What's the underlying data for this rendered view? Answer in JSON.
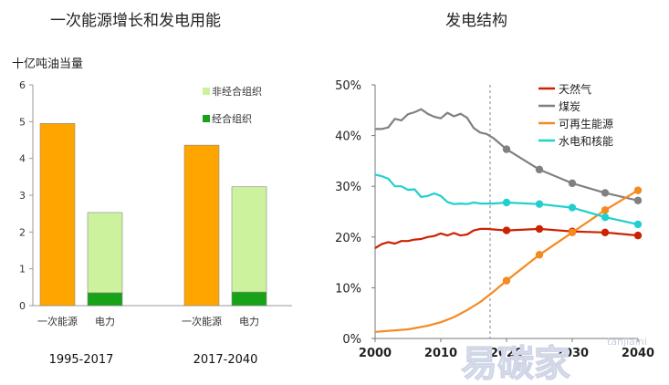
{
  "chart_data": [
    {
      "type": "bar",
      "title": "一次能源增长和发电用能",
      "ylabel": "十亿吨油当量",
      "ylim": [
        0,
        6
      ],
      "yticks": [
        "0",
        "1",
        "2",
        "3",
        "4",
        "5",
        "6"
      ],
      "groups": [
        {
          "label": "1995-2017",
          "bars": [
            {
              "label": "一次能源",
              "segments": [
                {
                  "series": "total",
                  "value": 4.95
                }
              ]
            },
            {
              "label": "电力",
              "segments": [
                {
                  "series": "经合组织",
                  "value": 0.35
                },
                {
                  "series": "非经合组织",
                  "value": 2.18
                }
              ]
            }
          ]
        },
        {
          "label": "2017-2040",
          "bars": [
            {
              "label": "一次能源",
              "segments": [
                {
                  "series": "total",
                  "value": 4.36
                }
              ]
            },
            {
              "label": "电力",
              "segments": [
                {
                  "series": "经合组织",
                  "value": 0.37
                },
                {
                  "series": "非经合组织",
                  "value": 2.86
                }
              ]
            }
          ]
        }
      ],
      "legend": [
        {
          "name": "非经合组织",
          "color": "#ccf29e"
        },
        {
          "name": "经合组织",
          "color": "#18a218"
        }
      ],
      "colors": {
        "total": "#ffa500",
        "非经合组织": "#ccf29e",
        "经合组织": "#18a218"
      }
    },
    {
      "type": "line",
      "title": "发电结构",
      "ylim": [
        0,
        50
      ],
      "yticks": [
        "0%",
        "10%",
        "20%",
        "30%",
        "40%",
        "50%"
      ],
      "xlim": [
        2000,
        2040
      ],
      "xticks": [
        "2000",
        "2010",
        "2020",
        "2030",
        "2040"
      ],
      "divider_x": 2017.5,
      "series": [
        {
          "name": "天然气",
          "color": "#cc2200",
          "x": [
            2000,
            2001,
            2002,
            2003,
            2004,
            2005,
            2006,
            2007,
            2008,
            2009,
            2010,
            2011,
            2012,
            2013,
            2014,
            2015,
            2016,
            2017,
            2018,
            2020,
            2025,
            2030,
            2035,
            2040
          ],
          "y": [
            17.8,
            18.6,
            19.0,
            18.7,
            19.2,
            19.2,
            19.5,
            19.6,
            20.0,
            20.2,
            20.7,
            20.3,
            20.8,
            20.3,
            20.5,
            21.3,
            21.6,
            21.6,
            21.5,
            21.3,
            21.6,
            21.1,
            20.9,
            20.3
          ],
          "markers_x": [
            2020,
            2025,
            2030,
            2035,
            2040
          ]
        },
        {
          "name": "煤炭",
          "color": "#808080",
          "x": [
            2000,
            2001,
            2002,
            2003,
            2004,
            2005,
            2006,
            2007,
            2008,
            2009,
            2010,
            2011,
            2012,
            2013,
            2014,
            2015,
            2016,
            2017,
            2018,
            2020,
            2025,
            2030,
            2035,
            2040
          ],
          "y": [
            41.3,
            41.3,
            41.6,
            43.3,
            43.0,
            44.2,
            44.6,
            45.2,
            44.3,
            43.7,
            43.4,
            44.5,
            43.8,
            44.3,
            43.5,
            41.5,
            40.6,
            40.3,
            39.5,
            37.3,
            33.3,
            30.6,
            28.7,
            27.2
          ],
          "markers_x": [
            2020,
            2025,
            2030,
            2035,
            2040
          ]
        },
        {
          "name": "可再生能源",
          "color": "#f58a1f",
          "x": [
            2000,
            2005,
            2008,
            2010,
            2012,
            2014,
            2016,
            2018,
            2020,
            2025,
            2030,
            2035,
            2040
          ],
          "y": [
            1.3,
            1.8,
            2.5,
            3.2,
            4.2,
            5.6,
            7.2,
            9.2,
            11.4,
            16.5,
            20.9,
            25.3,
            29.2
          ],
          "markers_x": [
            2020,
            2025,
            2030,
            2035,
            2040
          ]
        },
        {
          "name": "水电和核能",
          "color": "#22cfcf",
          "x": [
            2000,
            2001,
            2002,
            2003,
            2004,
            2005,
            2006,
            2007,
            2008,
            2009,
            2010,
            2011,
            2012,
            2013,
            2014,
            2015,
            2016,
            2017,
            2018,
            2020,
            2025,
            2030,
            2035,
            2040
          ],
          "y": [
            32.3,
            32.0,
            31.5,
            30.0,
            30.0,
            29.3,
            29.4,
            27.9,
            28.1,
            28.6,
            28.1,
            26.9,
            26.5,
            26.6,
            26.5,
            26.8,
            26.6,
            26.6,
            26.6,
            26.8,
            26.5,
            25.8,
            23.9,
            22.5
          ],
          "markers_x": [
            2020,
            2025,
            2030,
            2035,
            2040
          ]
        }
      ]
    }
  ],
  "watermark": {
    "text": "易碳家",
    "sub": "tanjiaini"
  }
}
